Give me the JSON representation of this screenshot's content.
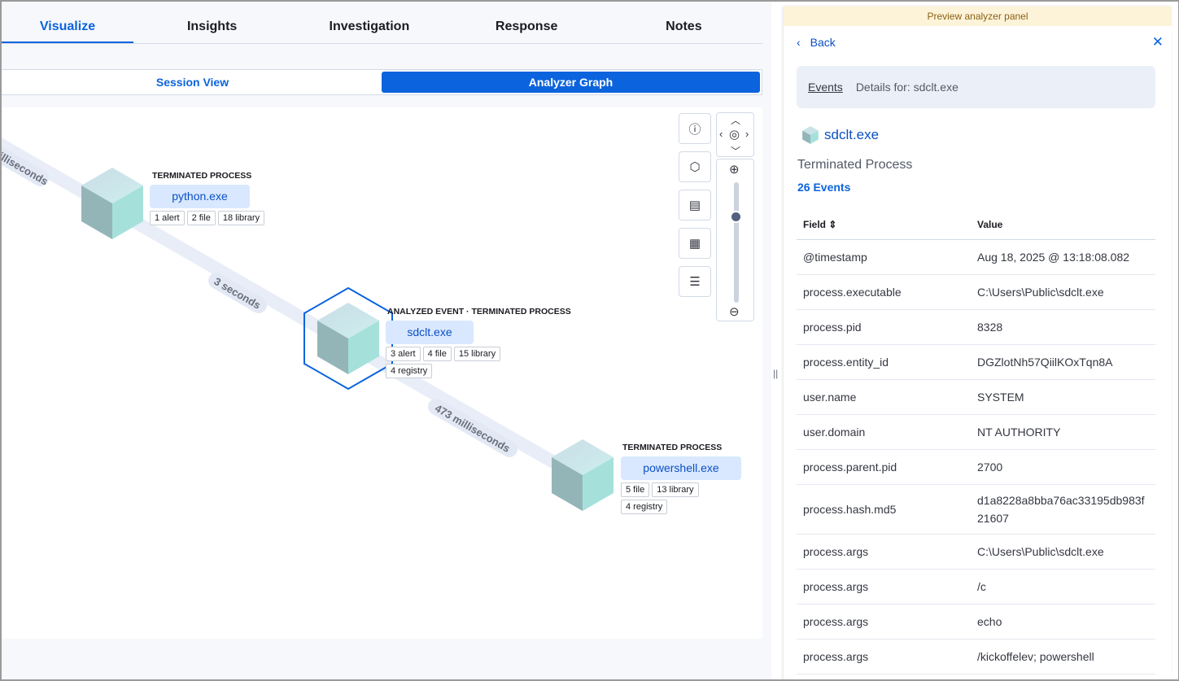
{
  "tabs": [
    {
      "label": "Visualize",
      "active": true
    },
    {
      "label": "Insights"
    },
    {
      "label": "Investigation"
    },
    {
      "label": "Response"
    },
    {
      "label": "Notes"
    }
  ],
  "view_toggle": {
    "session": "Session View",
    "analyzer": "Analyzer Graph",
    "selected": "Analyzer Graph"
  },
  "graph": {
    "edges": [
      "milliseconds",
      "3 seconds",
      "473 milliseconds"
    ],
    "nodes": [
      {
        "type": "TERMINATED PROCESS",
        "name": "python.exe",
        "pills": [
          "1 alert",
          "2 file",
          "18 library"
        ]
      },
      {
        "type": "ANALYZED EVENT · TERMINATED PROCESS",
        "name": "sdclt.exe",
        "pills": [
          "3 alert",
          "4 file",
          "15 library",
          "4 registry"
        ],
        "selected": true
      },
      {
        "type": "TERMINATED PROCESS",
        "name": "powershell.exe",
        "pills": [
          "5 file",
          "13 library",
          "4 registry"
        ]
      }
    ],
    "controls": [
      "info-icon",
      "hexagon-icon",
      "node-settings-icon",
      "calendar-icon",
      "list-icon"
    ],
    "zoom_level": 0.75
  },
  "panel": {
    "banner": "Preview analyzer panel",
    "back": "Back",
    "breadcrumb": {
      "link": "Events",
      "current": "Details for: sdclt.exe"
    },
    "title": "sdclt.exe",
    "subtitle": "Terminated Process",
    "events": "26 Events",
    "table": {
      "headers": [
        "Field",
        "Value"
      ],
      "rows": [
        [
          "@timestamp",
          "Aug 18, 2025 @ 13:18:08.082"
        ],
        [
          "process.executable",
          "C:\\Users\\Public\\sdclt.exe"
        ],
        [
          "process.pid",
          "8328"
        ],
        [
          "process.entity_id",
          "DGZlotNh57QiilKOxTqn8A"
        ],
        [
          "user.name",
          "SYSTEM"
        ],
        [
          "user.domain",
          "NT AUTHORITY"
        ],
        [
          "process.parent.pid",
          "2700"
        ],
        [
          "process.hash.md5",
          "d1a8228a8bba76ac33195db983f21607"
        ],
        [
          "process.args",
          "C:\\Users\\Public\\sdclt.exe"
        ],
        [
          "process.args",
          "/c"
        ],
        [
          "process.args",
          "echo"
        ],
        [
          "process.args",
          "/kickoffelev; powershell"
        ]
      ]
    }
  },
  "colors": {
    "accent": "#0b64dd",
    "node_bg": "#d9e8ff",
    "banner": "#fdf3d8"
  }
}
